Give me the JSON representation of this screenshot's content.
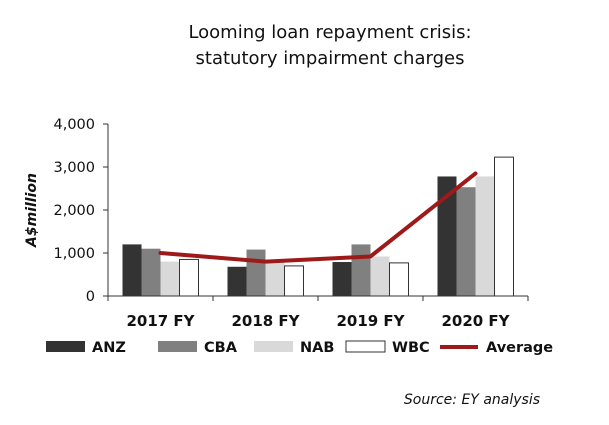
{
  "chart_data": {
    "type": "bar",
    "title": "Looming loan repayment crisis:",
    "subtitle": "statutory impairment charges",
    "ylabel": "A$million",
    "xlabel": "",
    "ylim": [
      0,
      4000
    ],
    "yticks": [
      0,
      1000,
      2000,
      3000,
      4000
    ],
    "ytick_labels": [
      "0",
      "1,000",
      "2,000",
      "3,000",
      "4,000"
    ],
    "categories": [
      "2017 FY",
      "2018 FY",
      "2019 FY",
      "2020 FY"
    ],
    "series": [
      {
        "name": "ANZ",
        "type": "bar",
        "color": "#333333",
        "values": [
          1200,
          680,
          790,
          2780
        ]
      },
      {
        "name": "CBA",
        "type": "bar",
        "color": "#808080",
        "values": [
          1100,
          1080,
          1200,
          2530
        ]
      },
      {
        "name": "NAB",
        "type": "bar",
        "color": "#d9d9d9",
        "values": [
          800,
          800,
          920,
          2780
        ]
      },
      {
        "name": "WBC",
        "type": "bar",
        "color": "#ffffff",
        "values": [
          850,
          700,
          770,
          3230
        ]
      },
      {
        "name": "Average",
        "type": "line",
        "color": "#9e1a1a",
        "values": [
          1000,
          800,
          920,
          2850
        ]
      }
    ],
    "legend_position": "bottom",
    "grid": false,
    "source": "Source: EY analysis"
  }
}
